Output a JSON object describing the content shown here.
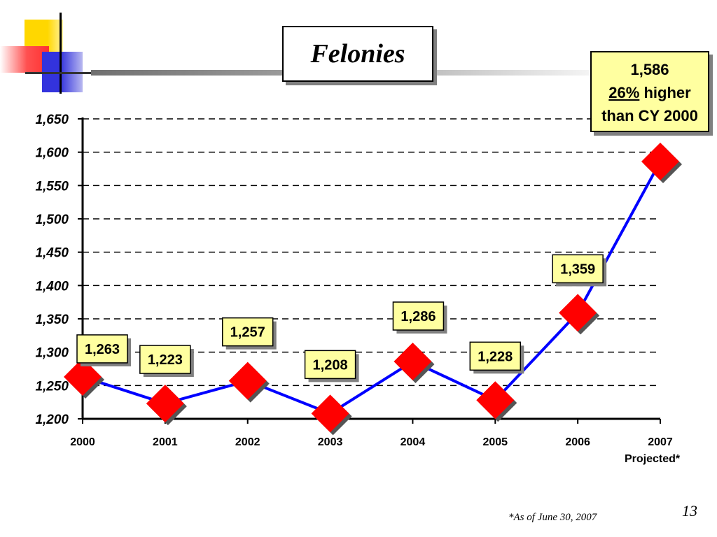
{
  "slide": {
    "title": "Felonies",
    "footnote": "*As of June 30, 2007",
    "page_number": "13",
    "projected_label": "Projected*"
  },
  "callout": {
    "value": "1,586",
    "percent": "26%",
    "line2_rest": " higher",
    "line3": "than CY 2000"
  },
  "colors": {
    "line": "#0000ff",
    "marker": "#ff0000",
    "label_bg": "#ffffa0",
    "decor_yellow": "#ffd700",
    "decor_red": "#ff3030",
    "decor_blue": "#3333dd"
  },
  "chart_data": {
    "type": "line",
    "title": "Felonies",
    "categories": [
      "2000",
      "2001",
      "2002",
      "2003",
      "2004",
      "2005",
      "2006",
      "2007"
    ],
    "series": [
      {
        "values": [
          1263,
          1223,
          1257,
          1208,
          1286,
          1228,
          1359,
          1586
        ]
      }
    ],
    "data_labels": [
      "1,263",
      "1,223",
      "1,257",
      "1,208",
      "1,286",
      "1,228",
      "1,359",
      "1,586"
    ],
    "ylim": [
      1200,
      1650
    ],
    "yticks": [
      1200,
      1250,
      1300,
      1350,
      1400,
      1450,
      1500,
      1550,
      1600,
      1650
    ],
    "ytick_labels": [
      "1,200",
      "1,250",
      "1,300",
      "1,350",
      "1,400",
      "1,450",
      "1,500",
      "1,550",
      "1,600",
      "1,650"
    ],
    "grid": true,
    "xlabel": "",
    "ylabel": ""
  }
}
